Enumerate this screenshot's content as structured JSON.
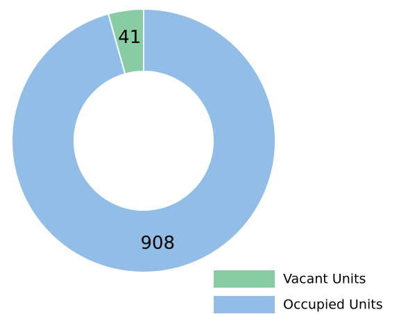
{
  "chart_data": {
    "type": "donut",
    "categories": [
      "Vacant Units",
      "Occupied Units"
    ],
    "values": [
      41,
      908
    ],
    "colors": [
      "#88cca4",
      "#92bde6"
    ],
    "legend": "bottom-right"
  }
}
